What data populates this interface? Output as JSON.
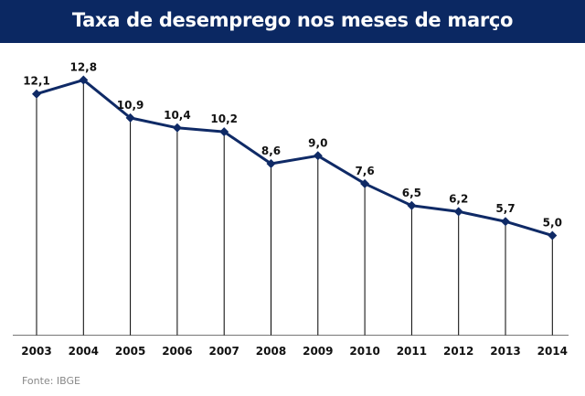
{
  "header": {
    "title": "Taxa de desemprego nos meses de março"
  },
  "footer": {
    "source": "Fonte: IBGE"
  },
  "colors": {
    "header_bg": "#0b2862",
    "line": "#0f2a66"
  },
  "chart_data": {
    "type": "line",
    "title": "Taxa de desemprego nos meses de março",
    "categories": [
      "2003",
      "2004",
      "2005",
      "2006",
      "2007",
      "2008",
      "2009",
      "2010",
      "2011",
      "2012",
      "2013",
      "2014"
    ],
    "values": [
      12.1,
      12.8,
      10.9,
      10.4,
      10.2,
      8.6,
      9.0,
      7.6,
      6.5,
      6.2,
      5.7,
      5.0
    ],
    "labels": [
      "12,1",
      "12,8",
      "10,9",
      "10,4",
      "10,2",
      "8,6",
      "9,0",
      "7,6",
      "6,5",
      "6,2",
      "5,7",
      "5,0"
    ],
    "xlabel": "",
    "ylabel": "",
    "ylim": [
      0,
      12.8
    ],
    "grid": false
  }
}
